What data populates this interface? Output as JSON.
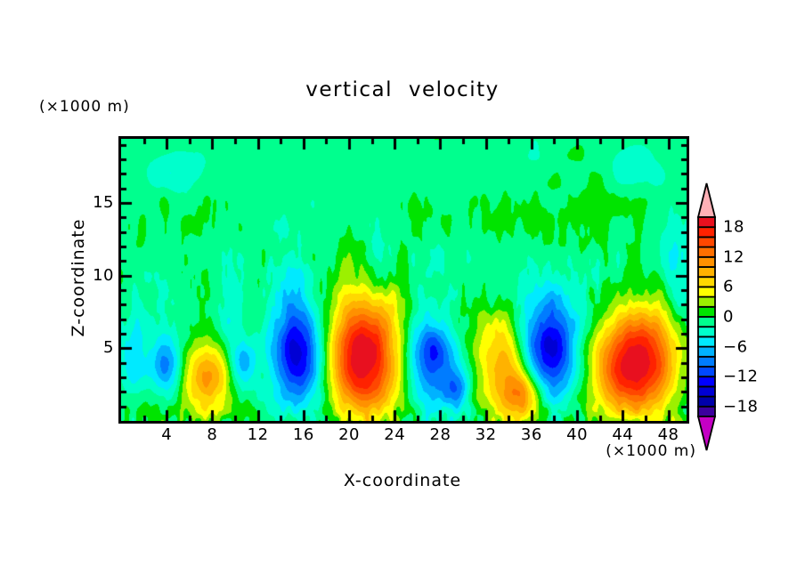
{
  "title": "vertical velocity",
  "axis_unit_top": "(×1000 m)",
  "axis_unit_bottom": "(×1000 m)",
  "x_axis": {
    "label": "X-coordinate",
    "min": 0,
    "max": 49.6,
    "major_ticks": [
      4,
      8,
      12,
      16,
      20,
      24,
      28,
      32,
      36,
      40,
      44,
      48
    ],
    "minor_step": 2
  },
  "z_axis": {
    "label": "Z-coordinate",
    "min": 0,
    "max": 19.4,
    "major_ticks": [
      5,
      10,
      15
    ],
    "minor_step": 1
  },
  "colorbar": {
    "min": -20,
    "max": 20,
    "step": 2,
    "tick_labels": [
      {
        "text": "18",
        "value": 18
      },
      {
        "text": "12",
        "value": 12
      },
      {
        "text": "6",
        "value": 6
      },
      {
        "text": "0",
        "value": 0
      },
      {
        "text": "−6",
        "value": -6
      },
      {
        "text": "−12",
        "value": -12
      },
      {
        "text": "−18",
        "value": -18
      }
    ],
    "colors": [
      "#3c009e",
      "#0000aa",
      "#0000d4",
      "#0000ff",
      "#0048ff",
      "#007cff",
      "#00b2ff",
      "#00eaff",
      "#00ffcc",
      "#00ff8e",
      "#00e400",
      "#9cf000",
      "#ffff00",
      "#ffd800",
      "#ffb200",
      "#ff9100",
      "#ff6f00",
      "#ff4700",
      "#ff2200",
      "#e8101f"
    ],
    "over_color": "#ffb0b6",
    "under_color": "#c400c4"
  },
  "chart_data": {
    "type": "heatmap",
    "title": "vertical velocity",
    "xlabel": "X-coordinate (×1000 m)",
    "ylabel": "Z-coordinate (×1000 m)",
    "x_range": [
      0,
      49.6
    ],
    "z_range": [
      0,
      19.4
    ],
    "contour_interval": 2,
    "value_range": [
      -20,
      20
    ],
    "cells": [
      {
        "x": 1.0,
        "z": 4.2,
        "amp": -6,
        "rx": 1.0,
        "rz": 2.3
      },
      {
        "x": 3.9,
        "z": 3.9,
        "amp": -10,
        "rx": 0.9,
        "rz": 1.5
      },
      {
        "x": 7.5,
        "z": 3.0,
        "amp": 11,
        "rx": 1.4,
        "rz": 1.7
      },
      {
        "x": 10.7,
        "z": 3.9,
        "amp": -8,
        "rx": 0.8,
        "rz": 1.2
      },
      {
        "x": 15.5,
        "z": 4.7,
        "amp": -15.5,
        "rx": 1.7,
        "rz": 2.5
      },
      {
        "x": 21.3,
        "z": 4.3,
        "amp": 19.5,
        "rx": 2.1,
        "rz": 3.0
      },
      {
        "x": 27.2,
        "z": 4.4,
        "amp": -13,
        "rx": 1.5,
        "rz": 2.2
      },
      {
        "x": 29.5,
        "z": 2.1,
        "amp": -8,
        "rx": 0.8,
        "rz": 1.1
      },
      {
        "x": 33.2,
        "z": 4.2,
        "amp": 9,
        "rx": 1.3,
        "rz": 2.3
      },
      {
        "x": 35.2,
        "z": 1.8,
        "amp": 12,
        "rx": 1.2,
        "rz": 1.4
      },
      {
        "x": 37.7,
        "z": 5.0,
        "amp": -14,
        "rx": 1.7,
        "rz": 2.5
      },
      {
        "x": 43.8,
        "z": 3.6,
        "amp": 13,
        "rx": 2.1,
        "rz": 2.4
      },
      {
        "x": 46.3,
        "z": 4.4,
        "amp": 13.5,
        "rx": 2.0,
        "rz": 2.6
      },
      {
        "x": 48.6,
        "z": 11.4,
        "amp": -5,
        "rx": 1.4,
        "rz": 2.5
      },
      {
        "x": 9.7,
        "z": 8.2,
        "amp": -3.5,
        "rx": 0.7,
        "rz": 2.4
      },
      {
        "x": 15.2,
        "z": 9.8,
        "amp": -3,
        "rx": 1.0,
        "rz": 2.0
      },
      {
        "x": 22.5,
        "z": 10.6,
        "amp": -3,
        "rx": 0.9,
        "rz": 1.8
      },
      {
        "x": 4.5,
        "z": 17.3,
        "amp": -3.2,
        "rx": 2.2,
        "rz": 1.1
      },
      {
        "x": 44.8,
        "z": 17.5,
        "amp": -3,
        "rx": 1.7,
        "rz": 1.2
      }
    ],
    "noise": {
      "octaves": [
        {
          "fx": 0.14,
          "fz": 0.28,
          "amp": 1.3
        },
        {
          "fx": 0.55,
          "fz": 0.6,
          "amp": 0.9
        },
        {
          "fx": 1.6,
          "fz": 0.45,
          "amp": 1.1,
          "zc": 10,
          "zw": 4.5
        },
        {
          "fx": 2.8,
          "fz": 0.9,
          "amp": 0.9,
          "zc": 9,
          "zw": 5.0
        },
        {
          "fx": 1.9,
          "fz": 1.2,
          "amp": 2.8,
          "zd": 1.5
        }
      ],
      "upper_bias": -0.25
    }
  }
}
